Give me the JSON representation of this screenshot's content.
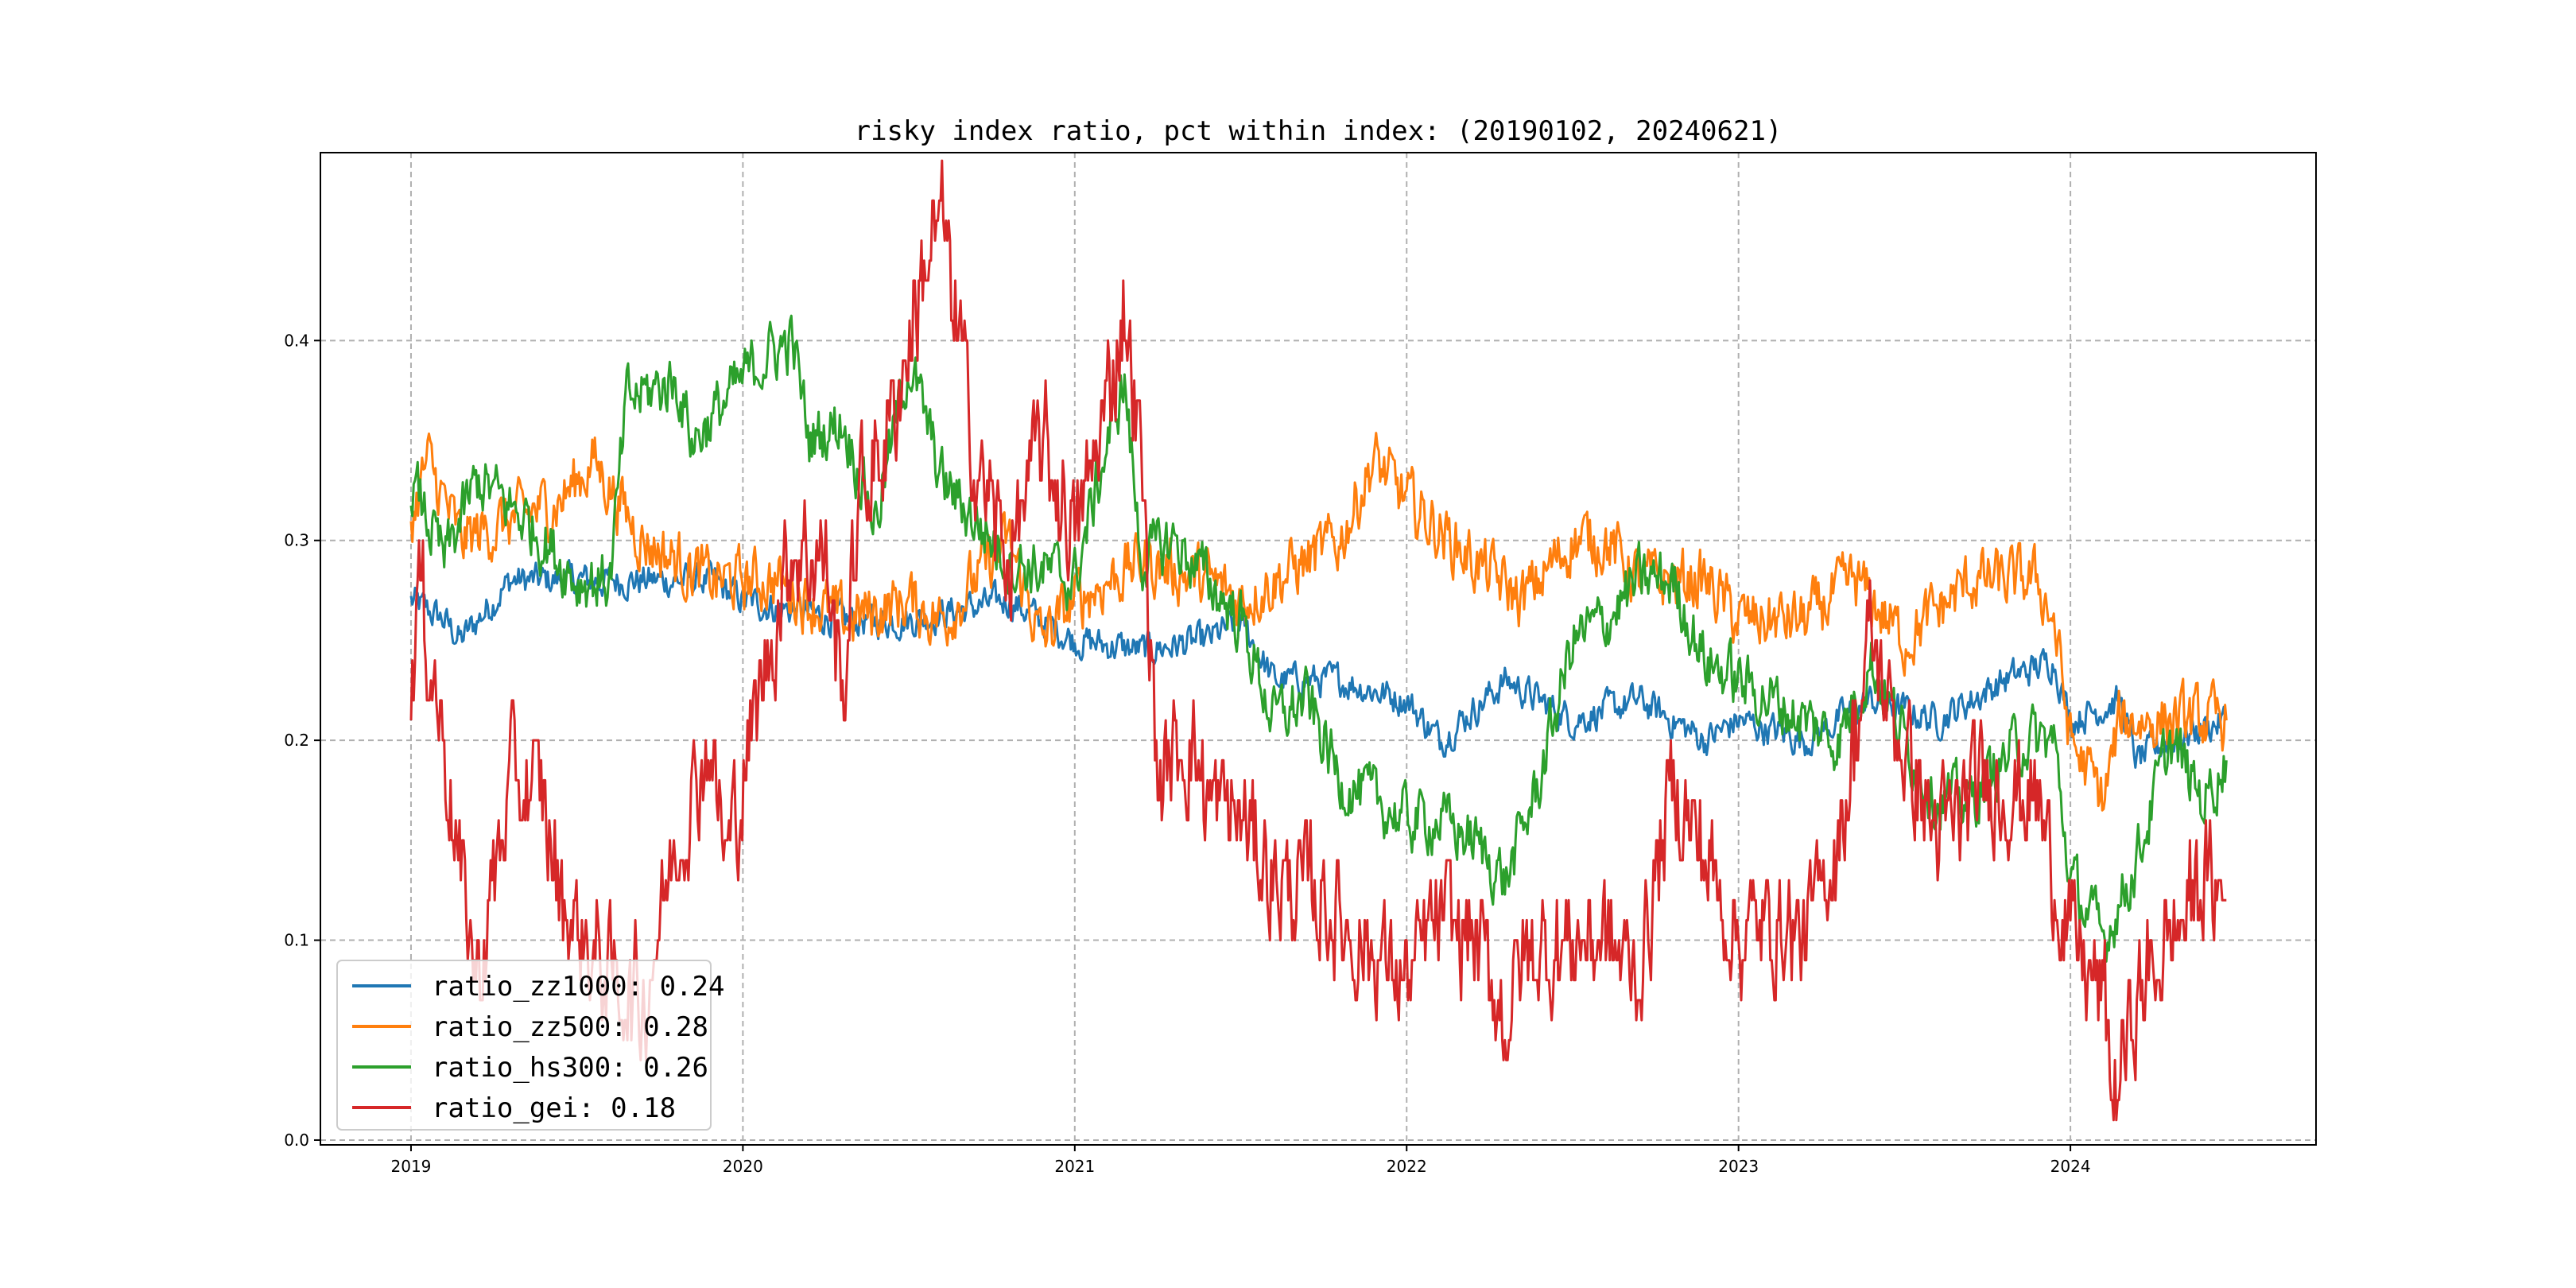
{
  "chart_data": {
    "type": "line",
    "title": "risky index ratio, pct within index: (20190102, 20240621)",
    "xlabel": "",
    "ylabel": "",
    "xlim": [
      2018.727,
      2024.74
    ],
    "ylim": [
      -0.0024,
      0.494
    ],
    "grid": true,
    "legend_position": "lower-left",
    "x_ticks": [
      2019,
      2020,
      2021,
      2022,
      2023,
      2024
    ],
    "x_tick_labels": [
      "2019",
      "2020",
      "2021",
      "2022",
      "2023",
      "2024"
    ],
    "y_ticks": [
      0,
      0.1,
      0.2,
      0.3,
      0.4
    ],
    "y_tick_labels": [
      "0.0",
      "0.1",
      "0.2",
      "0.3",
      "0.4"
    ],
    "series": [
      {
        "name": "ratio_zz1000",
        "legend": "ratio_zz1000: 0.24",
        "color": "#1f77b4",
        "points": [
          [
            2019.0,
            0.27
          ],
          [
            2019.1,
            0.26
          ],
          [
            2019.15,
            0.25
          ],
          [
            2019.3,
            0.28
          ],
          [
            2019.5,
            0.28
          ],
          [
            2019.7,
            0.28
          ],
          [
            2019.9,
            0.28
          ],
          [
            2020.0,
            0.27
          ],
          [
            2020.3,
            0.26
          ],
          [
            2020.5,
            0.26
          ],
          [
            2020.8,
            0.27
          ],
          [
            2021.0,
            0.25
          ],
          [
            2021.2,
            0.245
          ],
          [
            2021.4,
            0.25
          ],
          [
            2021.5,
            0.26
          ],
          [
            2021.6,
            0.23
          ],
          [
            2021.8,
            0.23
          ],
          [
            2022.0,
            0.22
          ],
          [
            2022.1,
            0.2
          ],
          [
            2022.3,
            0.23
          ],
          [
            2022.5,
            0.21
          ],
          [
            2022.7,
            0.22
          ],
          [
            2022.9,
            0.2
          ],
          [
            2023.0,
            0.21
          ],
          [
            2023.2,
            0.2
          ],
          [
            2023.4,
            0.22
          ],
          [
            2023.6,
            0.21
          ],
          [
            2023.8,
            0.23
          ],
          [
            2023.95,
            0.24
          ],
          [
            2024.0,
            0.21
          ],
          [
            2024.15,
            0.22
          ],
          [
            2024.2,
            0.19
          ],
          [
            2024.3,
            0.2
          ],
          [
            2024.47,
            0.21
          ]
        ]
      },
      {
        "name": "ratio_zz500",
        "legend": "ratio_zz500: 0.28",
        "color": "#ff7f0e",
        "points": [
          [
            2019.0,
            0.31
          ],
          [
            2019.05,
            0.34
          ],
          [
            2019.15,
            0.3
          ],
          [
            2019.3,
            0.31
          ],
          [
            2019.45,
            0.32
          ],
          [
            2019.55,
            0.34
          ],
          [
            2019.7,
            0.3
          ],
          [
            2019.9,
            0.28
          ],
          [
            2020.1,
            0.28
          ],
          [
            2020.3,
            0.26
          ],
          [
            2020.5,
            0.27
          ],
          [
            2020.6,
            0.26
          ],
          [
            2020.8,
            0.3
          ],
          [
            2020.9,
            0.25
          ],
          [
            2021.0,
            0.27
          ],
          [
            2021.2,
            0.29
          ],
          [
            2021.4,
            0.28
          ],
          [
            2021.5,
            0.27
          ],
          [
            2021.6,
            0.28
          ],
          [
            2021.8,
            0.3
          ],
          [
            2021.9,
            0.34
          ],
          [
            2022.0,
            0.32
          ],
          [
            2022.2,
            0.29
          ],
          [
            2022.35,
            0.27
          ],
          [
            2022.5,
            0.3
          ],
          [
            2022.6,
            0.3
          ],
          [
            2022.7,
            0.28
          ],
          [
            2022.9,
            0.28
          ],
          [
            2023.0,
            0.26
          ],
          [
            2023.2,
            0.26
          ],
          [
            2023.35,
            0.28
          ],
          [
            2023.5,
            0.25
          ],
          [
            2023.7,
            0.28
          ],
          [
            2023.9,
            0.28
          ],
          [
            2023.95,
            0.26
          ],
          [
            2024.0,
            0.2
          ],
          [
            2024.1,
            0.17
          ],
          [
            2024.15,
            0.21
          ],
          [
            2024.3,
            0.21
          ],
          [
            2024.47,
            0.21
          ]
        ]
      },
      {
        "name": "ratio_hs300",
        "legend": "ratio_hs300: 0.26",
        "color": "#2ca02c",
        "points": [
          [
            2019.0,
            0.33
          ],
          [
            2019.1,
            0.29
          ],
          [
            2019.2,
            0.33
          ],
          [
            2019.35,
            0.31
          ],
          [
            2019.5,
            0.28
          ],
          [
            2019.6,
            0.28
          ],
          [
            2019.65,
            0.37
          ],
          [
            2019.8,
            0.38
          ],
          [
            2019.85,
            0.35
          ],
          [
            2019.95,
            0.37
          ],
          [
            2020.05,
            0.39
          ],
          [
            2020.15,
            0.4
          ],
          [
            2020.2,
            0.35
          ],
          [
            2020.3,
            0.36
          ],
          [
            2020.4,
            0.31
          ],
          [
            2020.5,
            0.39
          ],
          [
            2020.6,
            0.33
          ],
          [
            2020.7,
            0.31
          ],
          [
            2020.8,
            0.29
          ],
          [
            2021.0,
            0.28
          ],
          [
            2021.1,
            0.35
          ],
          [
            2021.15,
            0.38
          ],
          [
            2021.2,
            0.29
          ],
          [
            2021.3,
            0.3
          ],
          [
            2021.4,
            0.28
          ],
          [
            2021.5,
            0.26
          ],
          [
            2021.6,
            0.21
          ],
          [
            2021.7,
            0.22
          ],
          [
            2021.8,
            0.18
          ],
          [
            2021.9,
            0.17
          ],
          [
            2022.0,
            0.16
          ],
          [
            2022.1,
            0.16
          ],
          [
            2022.2,
            0.15
          ],
          [
            2022.3,
            0.13
          ],
          [
            2022.4,
            0.18
          ],
          [
            2022.5,
            0.25
          ],
          [
            2022.6,
            0.26
          ],
          [
            2022.7,
            0.28
          ],
          [
            2022.8,
            0.28
          ],
          [
            2022.9,
            0.24
          ],
          [
            2023.0,
            0.23
          ],
          [
            2023.2,
            0.21
          ],
          [
            2023.3,
            0.2
          ],
          [
            2023.4,
            0.24
          ],
          [
            2023.5,
            0.2
          ],
          [
            2023.6,
            0.17
          ],
          [
            2023.7,
            0.17
          ],
          [
            2023.85,
            0.2
          ],
          [
            2023.95,
            0.2
          ],
          [
            2024.0,
            0.13
          ],
          [
            2024.1,
            0.1
          ],
          [
            2024.2,
            0.14
          ],
          [
            2024.3,
            0.2
          ],
          [
            2024.4,
            0.17
          ],
          [
            2024.47,
            0.19
          ]
        ]
      },
      {
        "name": "ratio_gei",
        "legend": "ratio_gei: 0.18",
        "color": "#d62728",
        "points": [
          [
            2019.0,
            0.22
          ],
          [
            2019.02,
            0.28
          ],
          [
            2019.1,
            0.2
          ],
          [
            2019.15,
            0.13
          ],
          [
            2019.2,
            0.08
          ],
          [
            2019.3,
            0.18
          ],
          [
            2019.4,
            0.17
          ],
          [
            2019.45,
            0.12
          ],
          [
            2019.6,
            0.08
          ],
          [
            2019.7,
            0.07
          ],
          [
            2019.8,
            0.15
          ],
          [
            2019.9,
            0.2
          ],
          [
            2019.95,
            0.14
          ],
          [
            2020.05,
            0.22
          ],
          [
            2020.15,
            0.3
          ],
          [
            2020.25,
            0.29
          ],
          [
            2020.3,
            0.22
          ],
          [
            2020.35,
            0.32
          ],
          [
            2020.45,
            0.36
          ],
          [
            2020.55,
            0.44
          ],
          [
            2020.6,
            0.46
          ],
          [
            2020.7,
            0.34
          ],
          [
            2020.8,
            0.29
          ],
          [
            2020.9,
            0.35
          ],
          [
            2021.0,
            0.3
          ],
          [
            2021.1,
            0.37
          ],
          [
            2021.15,
            0.42
          ],
          [
            2021.2,
            0.34
          ],
          [
            2021.25,
            0.18
          ],
          [
            2021.35,
            0.2
          ],
          [
            2021.4,
            0.17
          ],
          [
            2021.5,
            0.16
          ],
          [
            2021.6,
            0.13
          ],
          [
            2021.75,
            0.12
          ],
          [
            2021.85,
            0.1
          ],
          [
            2022.0,
            0.08
          ],
          [
            2022.1,
            0.11
          ],
          [
            2022.2,
            0.1
          ],
          [
            2022.3,
            0.06
          ],
          [
            2022.35,
            0.09
          ],
          [
            2022.5,
            0.1
          ],
          [
            2022.6,
            0.1
          ],
          [
            2022.7,
            0.08
          ],
          [
            2022.8,
            0.18
          ],
          [
            2022.9,
            0.14
          ],
          [
            2023.0,
            0.1
          ],
          [
            2023.1,
            0.11
          ],
          [
            2023.2,
            0.1
          ],
          [
            2023.3,
            0.15
          ],
          [
            2023.4,
            0.25
          ],
          [
            2023.45,
            0.22
          ],
          [
            2023.6,
            0.15
          ],
          [
            2023.75,
            0.18
          ],
          [
            2023.9,
            0.17
          ],
          [
            2024.0,
            0.1
          ],
          [
            2024.1,
            0.07
          ],
          [
            2024.13,
            0.02
          ],
          [
            2024.2,
            0.07
          ],
          [
            2024.3,
            0.1
          ],
          [
            2024.4,
            0.13
          ],
          [
            2024.47,
            0.12
          ]
        ]
      }
    ]
  }
}
